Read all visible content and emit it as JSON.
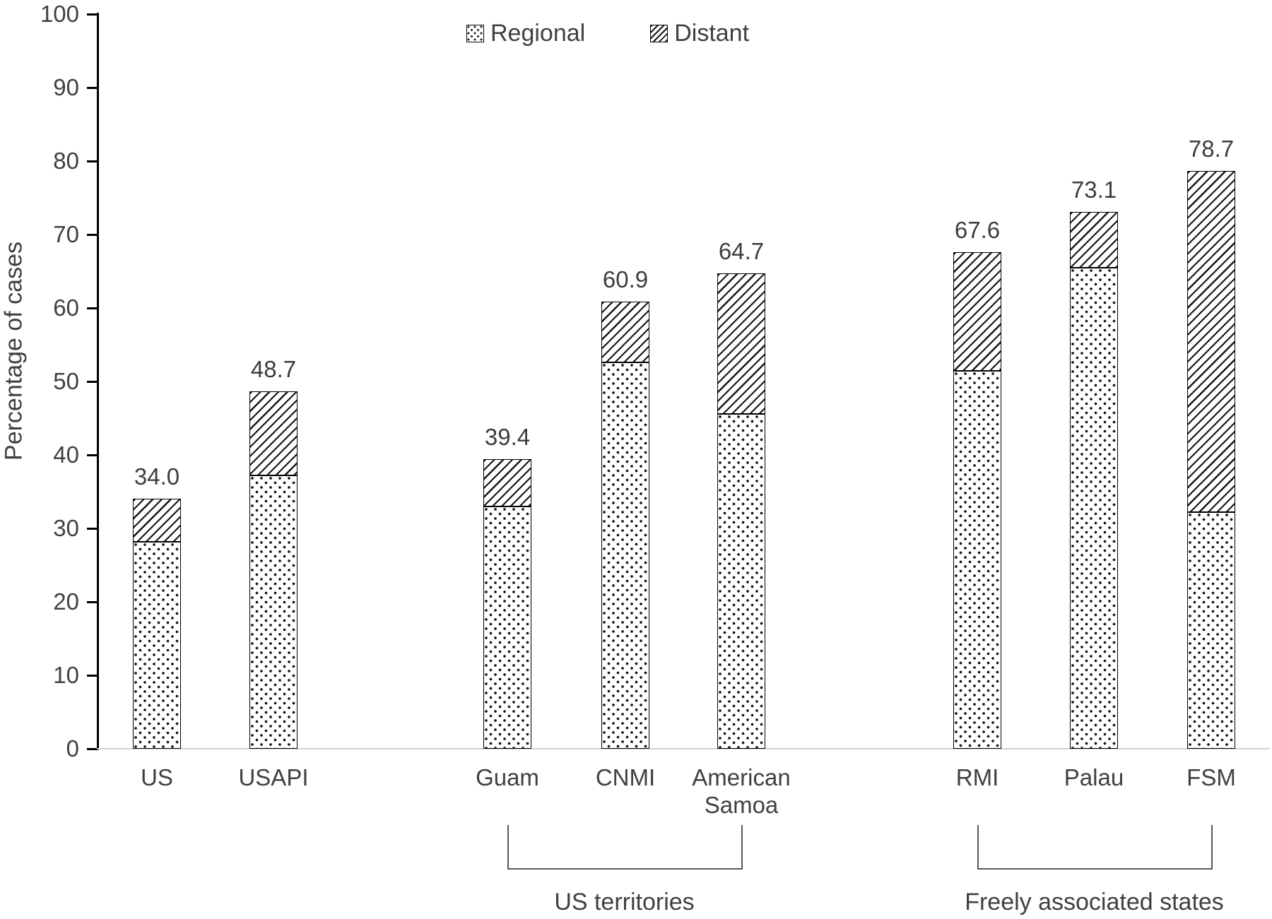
{
  "chart_data": {
    "type": "bar",
    "stacked": true,
    "title": "",
    "xlabel": "",
    "ylabel": "Percentage of cases",
    "ylim": [
      0,
      100
    ],
    "yticks": [
      0,
      10,
      20,
      30,
      40,
      50,
      60,
      70,
      80,
      90,
      100
    ],
    "ytick_labels": [
      "0",
      "10",
      "20",
      "30",
      "40",
      "50",
      "60",
      "70",
      "80",
      "90",
      "100"
    ],
    "grid": false,
    "legend_position": "top-center",
    "categories": [
      "US",
      "USAPI",
      "Guam",
      "CNMI",
      "American Samoa",
      "RMI",
      "Palau",
      "FSM"
    ],
    "series": [
      {
        "name": "Regional",
        "pattern": "dots",
        "values": [
          28.2,
          37.2,
          33.0,
          52.6,
          45.6,
          51.4,
          65.5,
          32.2
        ]
      },
      {
        "name": "Distant",
        "pattern": "diagonal-hatch",
        "values": [
          5.8,
          11.5,
          6.4,
          8.3,
          19.1,
          16.2,
          7.6,
          46.5
        ]
      }
    ],
    "totals": [
      34.0,
      48.7,
      39.4,
      60.9,
      64.7,
      67.6,
      73.1,
      78.7
    ],
    "total_labels": [
      "34.0",
      "48.7",
      "39.4",
      "60.9",
      "64.7",
      "67.6",
      "73.1",
      "78.7"
    ],
    "groups": [
      {
        "label": "US territories",
        "start": "Guam",
        "end": "American Samoa"
      },
      {
        "label": "Freely associated states",
        "start": "RMI",
        "end": "FSM"
      }
    ]
  },
  "legend": {
    "items": [
      {
        "label": "Regional",
        "pattern": "dots"
      },
      {
        "label": "Distant",
        "pattern": "diagonal-hatch"
      }
    ]
  },
  "colors": {
    "text": "#404040",
    "axis": "#000000",
    "baseline": "#d3d3d3",
    "pattern_ink": "#161616",
    "bracket": "#595959",
    "background": "#ffffff"
  }
}
